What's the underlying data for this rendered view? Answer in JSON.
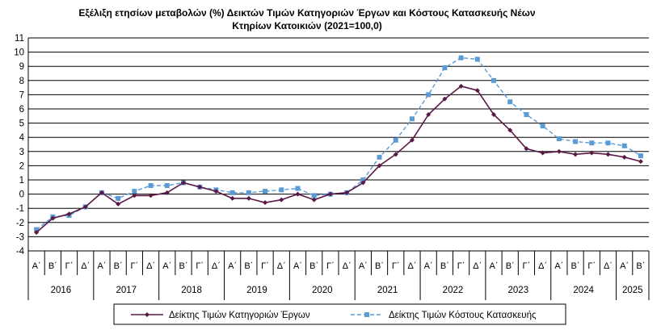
{
  "chart_data": {
    "type": "line",
    "title_line1": "Εξέλιξη ετησίων μεταβολών (%) Δεικτών Τιμών Κατηγοριών Έργων και Κόστους Κατασκευής Νέων",
    "title_line2": "Κτηρίων Κατοικιών (2021=100,0)",
    "years": [
      "2016",
      "2017",
      "2018",
      "2019",
      "2020",
      "2021",
      "2022",
      "2023",
      "2024",
      "2025"
    ],
    "quarters": [
      "Α΄",
      "Β΄",
      "Γ΄",
      "Δ΄"
    ],
    "x": [
      "Α΄",
      "Β΄",
      "Γ΄",
      "Δ΄",
      "Α΄",
      "Β΄",
      "Γ΄",
      "Δ΄",
      "Α΄",
      "Β΄",
      "Γ΄",
      "Δ΄",
      "Α΄",
      "Β΄",
      "Γ΄",
      "Δ΄",
      "Α΄",
      "Β΄",
      "Γ΄",
      "Δ΄",
      "Α΄",
      "Β΄",
      "Γ΄",
      "Δ΄",
      "Α΄",
      "Β΄",
      "Γ΄",
      "Δ΄",
      "Α΄",
      "Β΄",
      "Γ΄",
      "Δ΄",
      "Α΄",
      "Β΄",
      "Γ΄",
      "Δ΄",
      "Α΄",
      "Β΄"
    ],
    "ylim": [
      -4,
      11
    ],
    "yticks": [
      "-4",
      "-3",
      "-2",
      "-1",
      "0",
      "1",
      "2",
      "3",
      "4",
      "5",
      "6",
      "7",
      "8",
      "9",
      "10",
      "11"
    ],
    "grid": true,
    "legend_position": "bottom",
    "series": [
      {
        "name": "Δείκτης Τιμών Κατηγοριών Έργων",
        "color": "#5a1846",
        "style": "solid",
        "marker": "diamond",
        "values": [
          -2.7,
          -1.7,
          -1.4,
          -0.9,
          0.1,
          -0.7,
          -0.1,
          -0.1,
          0.1,
          0.8,
          0.5,
          0.2,
          -0.3,
          -0.3,
          -0.6,
          -0.4,
          0.0,
          -0.4,
          0.0,
          0.1,
          0.8,
          2.0,
          2.8,
          3.8,
          5.6,
          6.7,
          7.6,
          7.3,
          5.6,
          4.5,
          3.2,
          2.9,
          3.0,
          2.8,
          2.9,
          2.8,
          2.6,
          2.3
        ]
      },
      {
        "name": "Δείκτης Τιμών Κόστους Κατασκευής",
        "color": "#5b9bd5",
        "style": "dashed",
        "marker": "square",
        "values": [
          -2.5,
          -1.6,
          -1.5,
          -0.9,
          0.1,
          -0.3,
          0.2,
          0.6,
          0.6,
          0.8,
          0.5,
          0.3,
          0.1,
          0.1,
          0.2,
          0.3,
          0.4,
          -0.1,
          0.0,
          0.1,
          1.0,
          2.6,
          3.8,
          5.3,
          7.0,
          8.9,
          9.6,
          9.5,
          8.0,
          6.5,
          5.6,
          4.8,
          3.9,
          3.7,
          3.6,
          3.6,
          3.4,
          2.7
        ]
      }
    ]
  }
}
